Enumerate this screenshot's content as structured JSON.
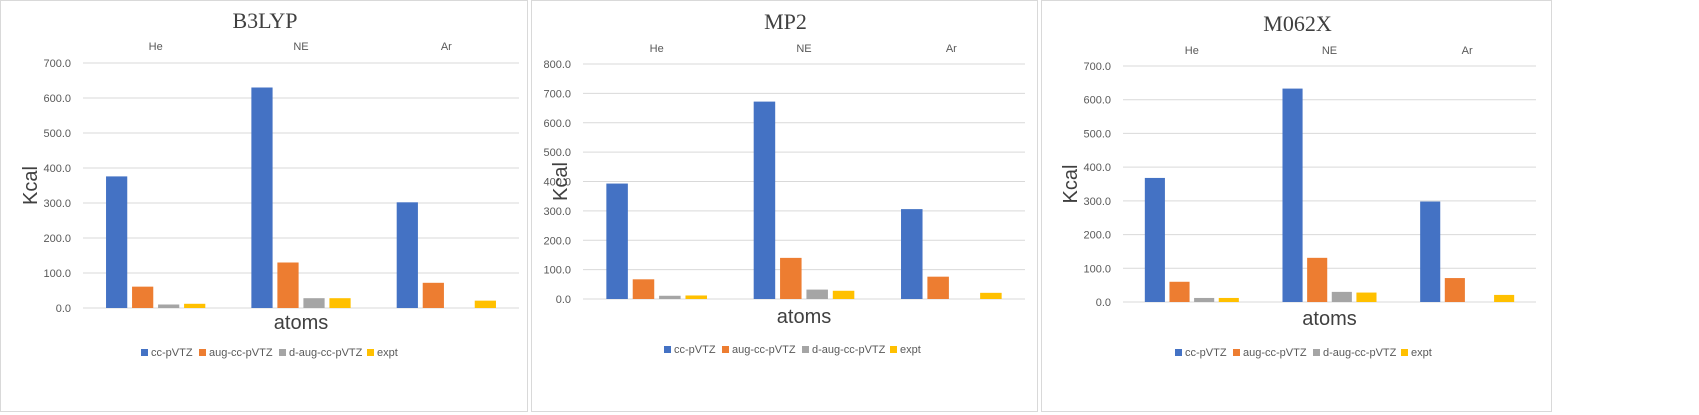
{
  "chart_data": [
    {
      "type": "bar",
      "title": "B3LYP",
      "categories": [
        "He",
        "NE",
        "Ar"
      ],
      "xlabel": "atoms",
      "ylabel": "Kcal",
      "ylim": [
        0,
        700
      ],
      "yticks": [
        "0.0",
        "100.0",
        "200.0",
        "300.0",
        "400.0",
        "500.0",
        "600.0",
        "700.0"
      ],
      "grid": true,
      "legend_position": "bottom",
      "series": [
        {
          "name": "cc-pVTZ",
          "color": "#4472C4",
          "values": [
            376,
            630,
            302
          ]
        },
        {
          "name": "aug-cc-pVTZ",
          "color": "#ED7D31",
          "values": [
            61,
            130,
            72
          ]
        },
        {
          "name": "d-aug-cc-pVTZ",
          "color": "#A5A5A5",
          "values": [
            10,
            28,
            0
          ]
        },
        {
          "name": "expt",
          "color": "#FFC000",
          "values": [
            12,
            28,
            21
          ]
        }
      ]
    },
    {
      "type": "bar",
      "title": "MP2",
      "categories": [
        "He",
        "NE",
        "Ar"
      ],
      "xlabel": "atoms",
      "ylabel": "Kcal",
      "ylim": [
        0,
        800
      ],
      "yticks": [
        "0.0",
        "100.0",
        "200.0",
        "300.0",
        "400.0",
        "500.0",
        "600.0",
        "700.0",
        "800.0"
      ],
      "grid": true,
      "legend_position": "bottom",
      "series": [
        {
          "name": "cc-pVTZ",
          "color": "#4472C4",
          "values": [
            393,
            672,
            306
          ]
        },
        {
          "name": "aug-cc-pVTZ",
          "color": "#ED7D31",
          "values": [
            67,
            140,
            76
          ]
        },
        {
          "name": "d-aug-cc-pVTZ",
          "color": "#A5A5A5",
          "values": [
            11,
            32,
            0
          ]
        },
        {
          "name": "expt",
          "color": "#FFC000",
          "values": [
            12,
            28,
            21
          ]
        }
      ]
    },
    {
      "type": "bar",
      "title": "M062X",
      "categories": [
        "He",
        "NE",
        "Ar"
      ],
      "xlabel": "atoms",
      "ylabel": "Kcal",
      "ylim": [
        0,
        700
      ],
      "yticks": [
        "0.0",
        "100.0",
        "200.0",
        "300.0",
        "400.0",
        "500.0",
        "600.0",
        "700.0"
      ],
      "grid": true,
      "legend_position": "bottom",
      "series": [
        {
          "name": "cc-pVTZ",
          "color": "#4472C4",
          "values": [
            368,
            633,
            298
          ]
        },
        {
          "name": "aug-cc-pVTZ",
          "color": "#ED7D31",
          "values": [
            60,
            131,
            71
          ]
        },
        {
          "name": "d-aug-cc-pVTZ",
          "color": "#A5A5A5",
          "values": [
            12,
            30,
            0
          ]
        },
        {
          "name": "expt",
          "color": "#FFC000",
          "values": [
            12,
            28,
            21
          ]
        }
      ]
    }
  ]
}
